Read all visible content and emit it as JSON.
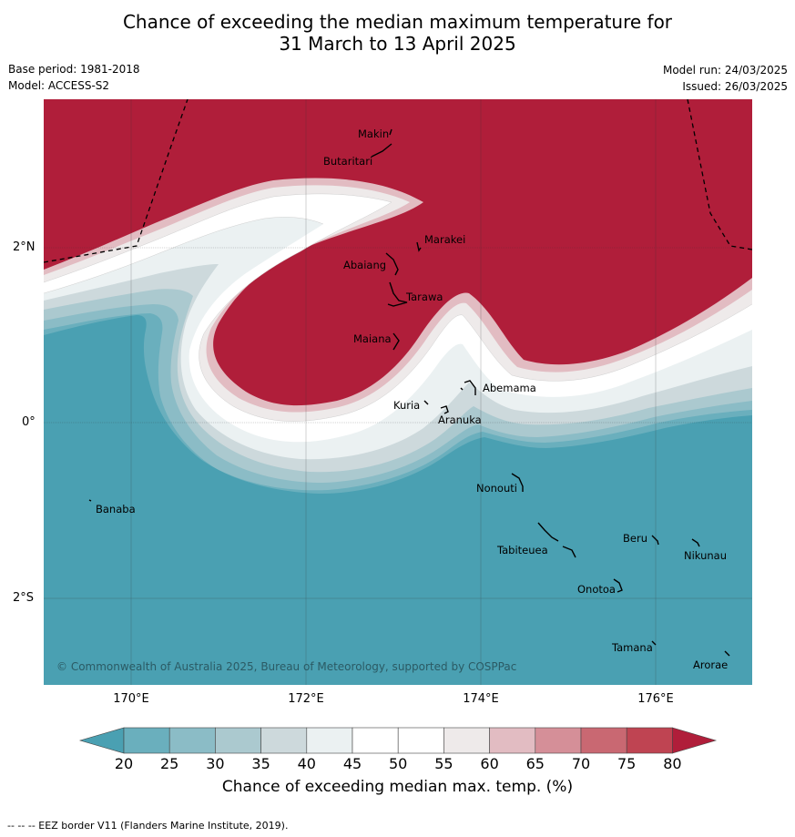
{
  "title_line1": "Chance of exceeding the median maximum temperature for",
  "title_line2": "31 March to 13 April 2025",
  "meta": {
    "base_period": "Base period: 1981-2018",
    "model": "Model: ACCESS-S2",
    "model_run": "Model run: 24/03/2025",
    "issued": "Issued: 26/03/2025"
  },
  "axes": {
    "x_ticks": [
      "170°E",
      "172°E",
      "174°E",
      "176°E"
    ],
    "y_ticks": [
      "2°N",
      "0°",
      "2°S"
    ]
  },
  "islands": [
    {
      "name": "Makin"
    },
    {
      "name": "Butaritari"
    },
    {
      "name": "Marakei"
    },
    {
      "name": "Abaiang"
    },
    {
      "name": "Tarawa"
    },
    {
      "name": "Maiana"
    },
    {
      "name": "Abemama"
    },
    {
      "name": "Kuria"
    },
    {
      "name": "Aranuka"
    },
    {
      "name": "Nonouti"
    },
    {
      "name": "Banaba"
    },
    {
      "name": "Tabiteuea"
    },
    {
      "name": "Beru"
    },
    {
      "name": "Nikunau"
    },
    {
      "name": "Onotoa"
    },
    {
      "name": "Tamana"
    },
    {
      "name": "Arorae"
    }
  ],
  "copyright": "© Commonwealth of Australia 2025, Bureau of Meteorology, supported by COSPPac",
  "colorbar": {
    "title": "Chance of exceeding median max. temp. (%)",
    "ticks": [
      "20",
      "25",
      "30",
      "35",
      "40",
      "45",
      "50",
      "55",
      "60",
      "65",
      "70",
      "75",
      "80"
    ],
    "colors": {
      "below_20": "#4aa0b2",
      "20_25": "#6aafbd",
      "25_30": "#8bbcc6",
      "30_35": "#abc9cf",
      "35_40": "#cdd9dc",
      "40_45": "#ebf1f2",
      "45_50": "#ffffff",
      "50_55": "#ffffff",
      "55_60": "#eeeaea",
      "60_65": "#e2bcc2",
      "65_70": "#d58f98",
      "70_75": "#c96872",
      "75_80": "#bf4452",
      "above_80": "#b01e3a"
    }
  },
  "footer": "--  --  -- EEZ border V11 (Flanders Marine Institute, 2019)."
}
